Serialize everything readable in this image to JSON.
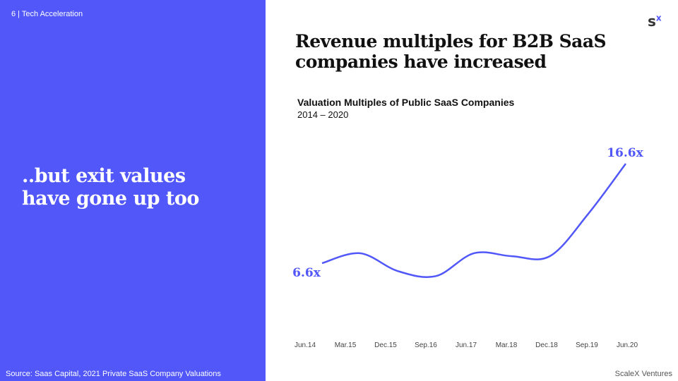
{
  "breadcrumb": "6 | Tech Acceleration",
  "lead": "..but exit values have gone up too",
  "source": "Source: Saas Capital, 2021 Private SaaS Company Valuations",
  "headline": "Revenue multiples for B2B SaaS companies have increased",
  "logo": {
    "s": "s",
    "x": "x"
  },
  "footer": "ScaleX Ventures",
  "colors": {
    "accent": "#5157f9"
  },
  "chart_data": {
    "type": "line",
    "title": "Valuation Multiples of Public SaaS Companies",
    "subtitle": "2014 – 2020",
    "categories": [
      "Jun.14",
      "Mar.15",
      "Dec.15",
      "Sep.16",
      "Jun.17",
      "Mar.18",
      "Dec.18",
      "Sep.19",
      "Jun.20"
    ],
    "values": [
      6.6,
      7.6,
      5.8,
      5.3,
      7.6,
      7.3,
      7.3,
      11.5,
      16.6
    ],
    "data_labels": {
      "first": "6.6x",
      "last": "16.6x"
    },
    "grid": false,
    "color": "#5157f9"
  }
}
